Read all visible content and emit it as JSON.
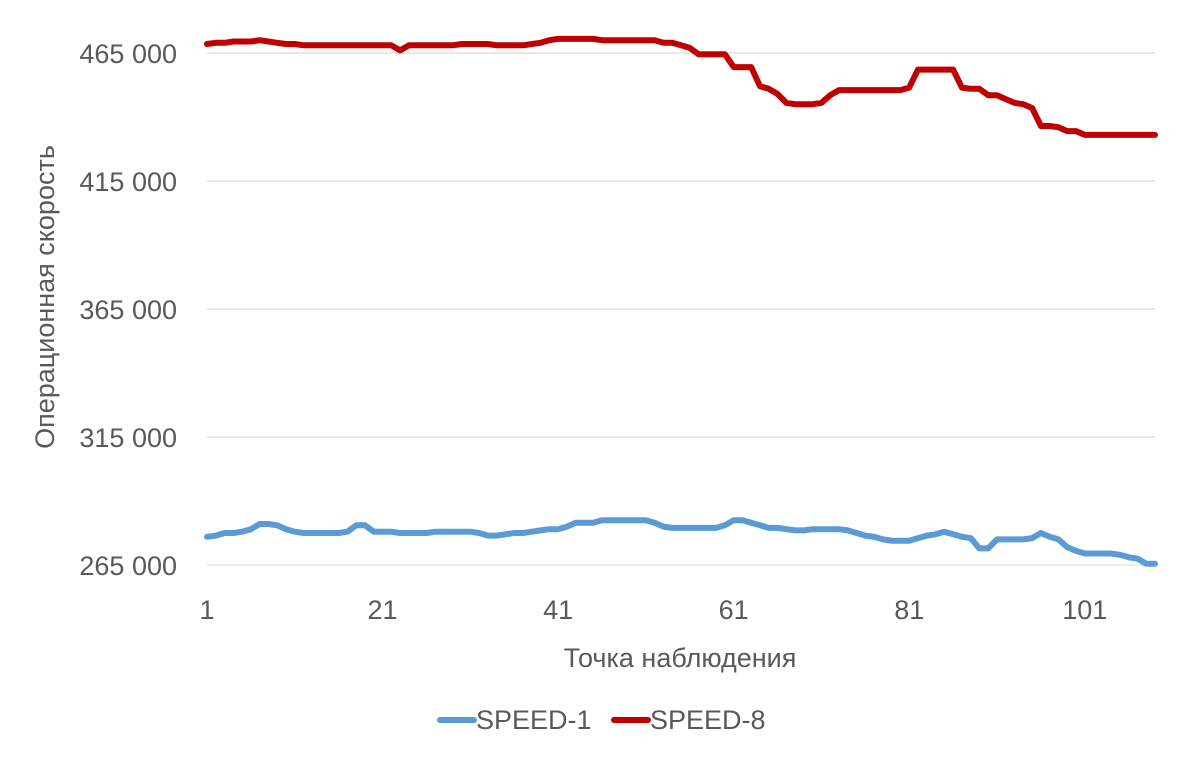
{
  "chart_data": {
    "type": "line",
    "xlabel": "Точка наблюдения",
    "ylabel": "Операционная скорость",
    "xlim": [
      1,
      109
    ],
    "ylim": [
      265000,
      475000
    ],
    "x_ticks": [
      1,
      21,
      41,
      61,
      81,
      101
    ],
    "x_tick_labels": [
      "1",
      "21",
      "41",
      "61",
      "81",
      "101"
    ],
    "y_ticks": [
      265000,
      315000,
      365000,
      415000,
      465000
    ],
    "y_tick_labels": [
      "265 000",
      "315 000",
      "365 000",
      "415 000",
      "465 000"
    ],
    "grid": true,
    "legend_position": "bottom",
    "series": [
      {
        "name": "SPEED-1",
        "color": "#5b9bd5",
        "x": [
          1,
          2,
          3,
          4,
          5,
          6,
          7,
          8,
          9,
          10,
          11,
          12,
          13,
          14,
          15,
          16,
          17,
          18,
          19,
          20,
          21,
          22,
          23,
          24,
          25,
          26,
          27,
          28,
          29,
          30,
          31,
          32,
          33,
          34,
          35,
          36,
          37,
          38,
          39,
          40,
          41,
          42,
          43,
          44,
          45,
          46,
          47,
          48,
          49,
          50,
          51,
          52,
          53,
          54,
          55,
          56,
          57,
          58,
          59,
          60,
          61,
          62,
          63,
          64,
          65,
          66,
          67,
          68,
          69,
          70,
          71,
          72,
          73,
          74,
          75,
          76,
          77,
          78,
          79,
          80,
          81,
          82,
          83,
          84,
          85,
          86,
          87,
          88,
          89,
          90,
          91,
          92,
          93,
          94,
          95,
          96,
          97,
          98,
          99,
          100,
          101,
          102,
          103,
          104,
          105,
          106,
          107,
          108,
          109
        ],
        "values": [
          276000,
          276500,
          277500,
          277500,
          278000,
          279000,
          281000,
          281000,
          280500,
          279000,
          278000,
          277500,
          277500,
          277500,
          277500,
          277500,
          278000,
          280500,
          280500,
          278000,
          278000,
          278000,
          277500,
          277500,
          277500,
          277500,
          278000,
          278000,
          278000,
          278000,
          278000,
          277500,
          276500,
          276500,
          277000,
          277500,
          277500,
          278000,
          278500,
          279000,
          279000,
          280000,
          281500,
          281500,
          281500,
          282500,
          282500,
          282500,
          282500,
          282500,
          282500,
          281500,
          280000,
          279500,
          279500,
          279500,
          279500,
          279500,
          279500,
          280500,
          282500,
          282500,
          281500,
          280500,
          279500,
          279500,
          279000,
          278500,
          278500,
          279000,
          279000,
          279000,
          279000,
          278500,
          277500,
          276500,
          276000,
          275000,
          274500,
          274500,
          274500,
          275500,
          276500,
          277000,
          278000,
          277000,
          276000,
          275500,
          271500,
          271500,
          275000,
          275000,
          275000,
          275000,
          275500,
          277500,
          276000,
          275000,
          272000,
          270500,
          269500,
          269500,
          269500,
          269500,
          269000,
          268000,
          267500,
          265500,
          265500
        ]
      },
      {
        "name": "SPEED-8",
        "color": "#c00000",
        "x": [
          1,
          2,
          3,
          4,
          5,
          6,
          7,
          8,
          9,
          10,
          11,
          12,
          13,
          14,
          15,
          16,
          17,
          18,
          19,
          20,
          21,
          22,
          23,
          24,
          25,
          26,
          27,
          28,
          29,
          30,
          31,
          32,
          33,
          34,
          35,
          36,
          37,
          38,
          39,
          40,
          41,
          42,
          43,
          44,
          45,
          46,
          47,
          48,
          49,
          50,
          51,
          52,
          53,
          54,
          55,
          56,
          57,
          58,
          59,
          60,
          61,
          62,
          63,
          64,
          65,
          66,
          67,
          68,
          69,
          70,
          71,
          72,
          73,
          74,
          75,
          76,
          77,
          78,
          79,
          80,
          81,
          82,
          83,
          84,
          85,
          86,
          87,
          88,
          89,
          90,
          91,
          92,
          93,
          94,
          95,
          96,
          97,
          98,
          99,
          100,
          101,
          102,
          103,
          104,
          105,
          106,
          107,
          108,
          109
        ],
        "values": [
          468500,
          469000,
          469000,
          469500,
          469500,
          469500,
          470000,
          469500,
          469000,
          468500,
          468500,
          468000,
          468000,
          468000,
          468000,
          468000,
          468000,
          468000,
          468000,
          468000,
          468000,
          468000,
          466000,
          468000,
          468000,
          468000,
          468000,
          468000,
          468000,
          468500,
          468500,
          468500,
          468500,
          468000,
          468000,
          468000,
          468000,
          468500,
          469000,
          470000,
          470500,
          470500,
          470500,
          470500,
          470500,
          470000,
          470000,
          470000,
          470000,
          470000,
          470000,
          470000,
          469000,
          469000,
          468000,
          467000,
          464500,
          464500,
          464500,
          464500,
          459500,
          459500,
          459500,
          452000,
          451000,
          449000,
          445500,
          445000,
          445000,
          445000,
          445500,
          448500,
          450500,
          450500,
          450500,
          450500,
          450500,
          450500,
          450500,
          450500,
          451500,
          458500,
          458500,
          458500,
          458500,
          458500,
          451500,
          451000,
          451000,
          448500,
          448500,
          447000,
          445500,
          445000,
          443500,
          436500,
          436500,
          436000,
          434500,
          434500,
          433000,
          433000,
          433000,
          433000,
          433000,
          433000,
          433000,
          433000,
          433000
        ]
      }
    ]
  }
}
